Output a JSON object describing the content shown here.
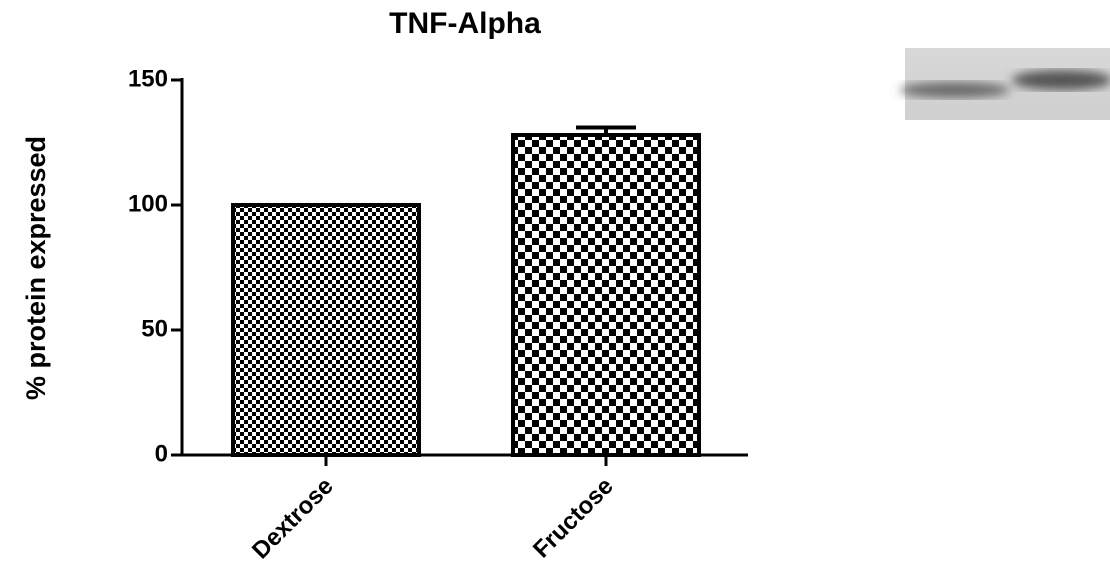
{
  "chart_data": {
    "type": "bar",
    "title": "TNF-Alpha",
    "y_label": "% protein expressed",
    "categories": [
      "Dextrose",
      "Fructose"
    ],
    "values": [
      100,
      128
    ],
    "errors": [
      null,
      3
    ],
    "color": "#000000",
    "ylim": [
      0,
      150
    ],
    "yticks": [
      0,
      50,
      100,
      150
    ],
    "grid": false
  }
}
